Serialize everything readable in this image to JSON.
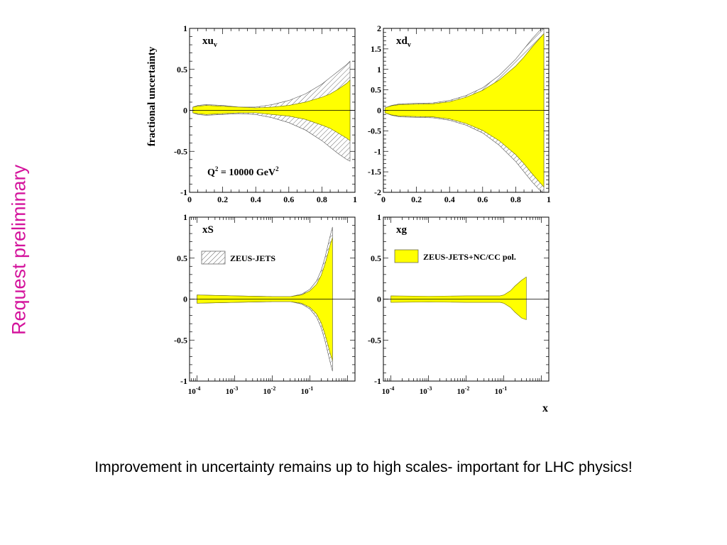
{
  "side_label": "Request preliminary",
  "caption": "Improvement in uncertainty remains up to high scales- important for LHC physics!",
  "colors": {
    "pol_band": "#ffff00",
    "zeus_jets_hatch": "#555555",
    "side_label": "#d4149c"
  },
  "chart_data": [
    {
      "type": "area",
      "panel": "xuv",
      "label_main": "xu",
      "label_sub": "v",
      "ylabel": "fractional uncertainty",
      "annotation": {
        "main": "Q",
        "sup1": "2",
        "mid": " = 10000 GeV",
        "sup2": "2"
      },
      "xscale": "linear",
      "xlim": [
        0,
        1
      ],
      "ylim": [
        -1,
        1
      ],
      "xticks": [
        {
          "v": 0,
          "t": "0"
        },
        {
          "v": 0.2,
          "t": "0.2"
        },
        {
          "v": 0.4,
          "t": "0.4"
        },
        {
          "v": 0.6,
          "t": "0.6"
        },
        {
          "v": 0.8,
          "t": "0.8"
        },
        {
          "v": 1,
          "t": "1"
        }
      ],
      "yticks": [
        {
          "v": 1,
          "t": "1"
        },
        {
          "v": 0.5,
          "t": "0.5"
        },
        {
          "v": 0,
          "t": "0"
        },
        {
          "v": -0.5,
          "t": "-0.5"
        },
        {
          "v": -1,
          "t": "-1"
        }
      ],
      "series": [
        {
          "kind": "hatch",
          "x": [
            0.02,
            0.05,
            0.1,
            0.2,
            0.3,
            0.4,
            0.5,
            0.6,
            0.7,
            0.8,
            0.85,
            0.9,
            0.95,
            0.97
          ],
          "upper": [
            0.04,
            0.06,
            0.07,
            0.06,
            0.04,
            0.04,
            0.07,
            0.12,
            0.2,
            0.32,
            0.4,
            0.48,
            0.56,
            0.6
          ],
          "lower": [
            -0.03,
            -0.05,
            -0.06,
            -0.05,
            -0.04,
            -0.05,
            -0.09,
            -0.15,
            -0.24,
            -0.37,
            -0.45,
            -0.53,
            -0.6,
            -0.62
          ]
        },
        {
          "kind": "band",
          "x": [
            0.02,
            0.05,
            0.1,
            0.2,
            0.3,
            0.4,
            0.5,
            0.6,
            0.7,
            0.8,
            0.85,
            0.9,
            0.95,
            0.97
          ],
          "upper": [
            0.04,
            0.05,
            0.06,
            0.05,
            0.04,
            0.03,
            0.04,
            0.06,
            0.1,
            0.16,
            0.2,
            0.26,
            0.33,
            0.37
          ],
          "lower": [
            -0.03,
            -0.04,
            -0.05,
            -0.04,
            -0.03,
            -0.03,
            -0.05,
            -0.07,
            -0.11,
            -0.18,
            -0.22,
            -0.28,
            -0.34,
            -0.37
          ]
        }
      ]
    },
    {
      "type": "area",
      "panel": "xdv",
      "label_main": "xd",
      "label_sub": "v",
      "xscale": "linear",
      "xlim": [
        0,
        1
      ],
      "ylim": [
        -2,
        2
      ],
      "xticks": [
        {
          "v": 0,
          "t": "0"
        },
        {
          "v": 0.2,
          "t": "0.2"
        },
        {
          "v": 0.4,
          "t": "0.4"
        },
        {
          "v": 0.6,
          "t": "0.6"
        },
        {
          "v": 0.8,
          "t": "0.8"
        },
        {
          "v": 1,
          "t": "1"
        }
      ],
      "yticks": [
        {
          "v": 2,
          "t": "2"
        },
        {
          "v": 1.5,
          "t": "1.5"
        },
        {
          "v": 1,
          "t": "1"
        },
        {
          "v": 0.5,
          "t": "0.5"
        },
        {
          "v": 0,
          "t": "0"
        },
        {
          "v": -0.5,
          "t": "-0.5"
        },
        {
          "v": -1,
          "t": "-1"
        },
        {
          "v": -1.5,
          "t": "-1.5"
        },
        {
          "v": -2,
          "t": "-2"
        }
      ],
      "series": [
        {
          "kind": "hatch",
          "x": [
            0.01,
            0.05,
            0.1,
            0.2,
            0.3,
            0.4,
            0.5,
            0.6,
            0.7,
            0.8,
            0.85,
            0.9,
            0.95,
            0.97
          ],
          "upper": [
            0.06,
            0.12,
            0.16,
            0.17,
            0.18,
            0.24,
            0.36,
            0.55,
            0.85,
            1.25,
            1.5,
            1.75,
            1.97,
            2.0
          ],
          "lower": [
            -0.06,
            -0.12,
            -0.16,
            -0.17,
            -0.18,
            -0.24,
            -0.36,
            -0.55,
            -0.85,
            -1.25,
            -1.5,
            -1.75,
            -1.97,
            -2.0
          ]
        },
        {
          "kind": "band",
          "x": [
            0.01,
            0.05,
            0.1,
            0.2,
            0.3,
            0.4,
            0.5,
            0.6,
            0.7,
            0.8,
            0.85,
            0.9,
            0.95,
            0.97
          ],
          "upper": [
            0.06,
            0.11,
            0.14,
            0.15,
            0.16,
            0.21,
            0.32,
            0.49,
            0.74,
            1.08,
            1.3,
            1.55,
            1.78,
            1.87
          ],
          "lower": [
            -0.06,
            -0.11,
            -0.14,
            -0.15,
            -0.16,
            -0.21,
            -0.32,
            -0.49,
            -0.74,
            -1.08,
            -1.3,
            -1.55,
            -1.78,
            -1.87
          ]
        }
      ]
    },
    {
      "type": "area",
      "panel": "xS",
      "label_main": "xS",
      "legend": "ZEUS-JETS",
      "xscale": "log",
      "xlim_exp": [
        -4.2,
        0.2
      ],
      "ylim": [
        -1,
        1
      ],
      "xticks": [
        {
          "exp": -4,
          "base": "10",
          "sup": "-4"
        },
        {
          "exp": -3,
          "base": "10",
          "sup": "-3"
        },
        {
          "exp": -2,
          "base": "10",
          "sup": "-2"
        },
        {
          "exp": -1,
          "base": "10",
          "sup": "-1"
        }
      ],
      "yticks": [
        {
          "v": 1,
          "t": "1"
        },
        {
          "v": 0.5,
          "t": "0.5"
        },
        {
          "v": 0,
          "t": "0"
        },
        {
          "v": -0.5,
          "t": "-0.5"
        },
        {
          "v": -1,
          "t": "-1"
        }
      ],
      "series": [
        {
          "kind": "hatch",
          "x": [
            0.0001,
            0.001,
            0.01,
            0.03,
            0.06,
            0.1,
            0.15,
            0.2,
            0.25,
            0.3,
            0.35,
            0.4
          ],
          "upper": [
            0.05,
            0.04,
            0.03,
            0.03,
            0.06,
            0.12,
            0.22,
            0.35,
            0.5,
            0.65,
            0.78,
            0.88
          ],
          "lower": [
            -0.05,
            -0.04,
            -0.03,
            -0.03,
            -0.06,
            -0.12,
            -0.22,
            -0.35,
            -0.5,
            -0.65,
            -0.78,
            -0.88
          ]
        },
        {
          "kind": "band",
          "x": [
            0.0001,
            0.001,
            0.01,
            0.03,
            0.06,
            0.1,
            0.15,
            0.2,
            0.25,
            0.3,
            0.35,
            0.4
          ],
          "upper": [
            0.05,
            0.04,
            0.03,
            0.03,
            0.05,
            0.1,
            0.18,
            0.29,
            0.42,
            0.55,
            0.67,
            0.75
          ],
          "lower": [
            -0.05,
            -0.04,
            -0.03,
            -0.03,
            -0.05,
            -0.1,
            -0.18,
            -0.29,
            -0.42,
            -0.55,
            -0.67,
            -0.75
          ]
        }
      ]
    },
    {
      "type": "area",
      "panel": "xg",
      "label_main": "xg",
      "legend": "ZEUS-JETS+NC/CC pol.",
      "xscale": "log",
      "xlim_exp": [
        -4.2,
        0.2
      ],
      "ylim": [
        -1,
        1
      ],
      "xticks": [
        {
          "exp": -4,
          "base": "10",
          "sup": "-4"
        },
        {
          "exp": -3,
          "base": "10",
          "sup": "-3"
        },
        {
          "exp": -2,
          "base": "10",
          "sup": "-2"
        },
        {
          "exp": -1,
          "base": "10",
          "sup": "-1"
        }
      ],
      "yticks": [
        {
          "v": 1,
          "t": "1"
        },
        {
          "v": 0.5,
          "t": "0.5"
        },
        {
          "v": 0,
          "t": "0"
        },
        {
          "v": -0.5,
          "t": "-0.5"
        },
        {
          "v": -1,
          "t": "-1"
        }
      ],
      "xlabel": "x",
      "series": [
        {
          "kind": "band",
          "x": [
            0.0001,
            0.001,
            0.01,
            0.05,
            0.08,
            0.1,
            0.15,
            0.2,
            0.3,
            0.4
          ],
          "upper": [
            0.04,
            0.035,
            0.04,
            0.04,
            0.04,
            0.05,
            0.1,
            0.16,
            0.23,
            0.27
          ],
          "lower": [
            -0.04,
            -0.035,
            -0.04,
            -0.04,
            -0.04,
            -0.05,
            -0.1,
            -0.16,
            -0.23,
            -0.25
          ]
        }
      ]
    }
  ]
}
